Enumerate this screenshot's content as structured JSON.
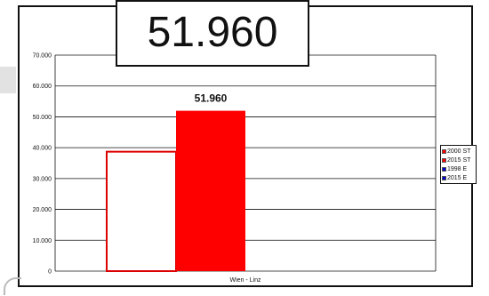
{
  "big_label": "51.960",
  "colors": {
    "red": "#ff0000",
    "blue": "#0000cc",
    "outline": "#dd0000"
  },
  "chart_data": {
    "type": "bar",
    "categories": [
      "Wien - Linz"
    ],
    "series": [
      {
        "name": "2000 ST",
        "values": [
          38700
        ]
      },
      {
        "name": "2015 ST",
        "values": [
          51960
        ]
      }
    ],
    "data_labels": [
      "",
      "51.960"
    ],
    "y_ticks": [
      "0",
      "10.000",
      "20.000",
      "30.000",
      "40.000",
      "50.000",
      "60.000",
      "70.000"
    ],
    "ylim": [
      0,
      70000
    ],
    "grid": true,
    "legend": {
      "placement": "right",
      "items": [
        {
          "label": "2000 ST",
          "icon": "red-square"
        },
        {
          "label": "2015 ST",
          "icon": "red-square"
        },
        {
          "label": "1998 E",
          "icon": "blue-square"
        },
        {
          "label": "2015 E",
          "icon": "blue-square"
        }
      ]
    }
  }
}
